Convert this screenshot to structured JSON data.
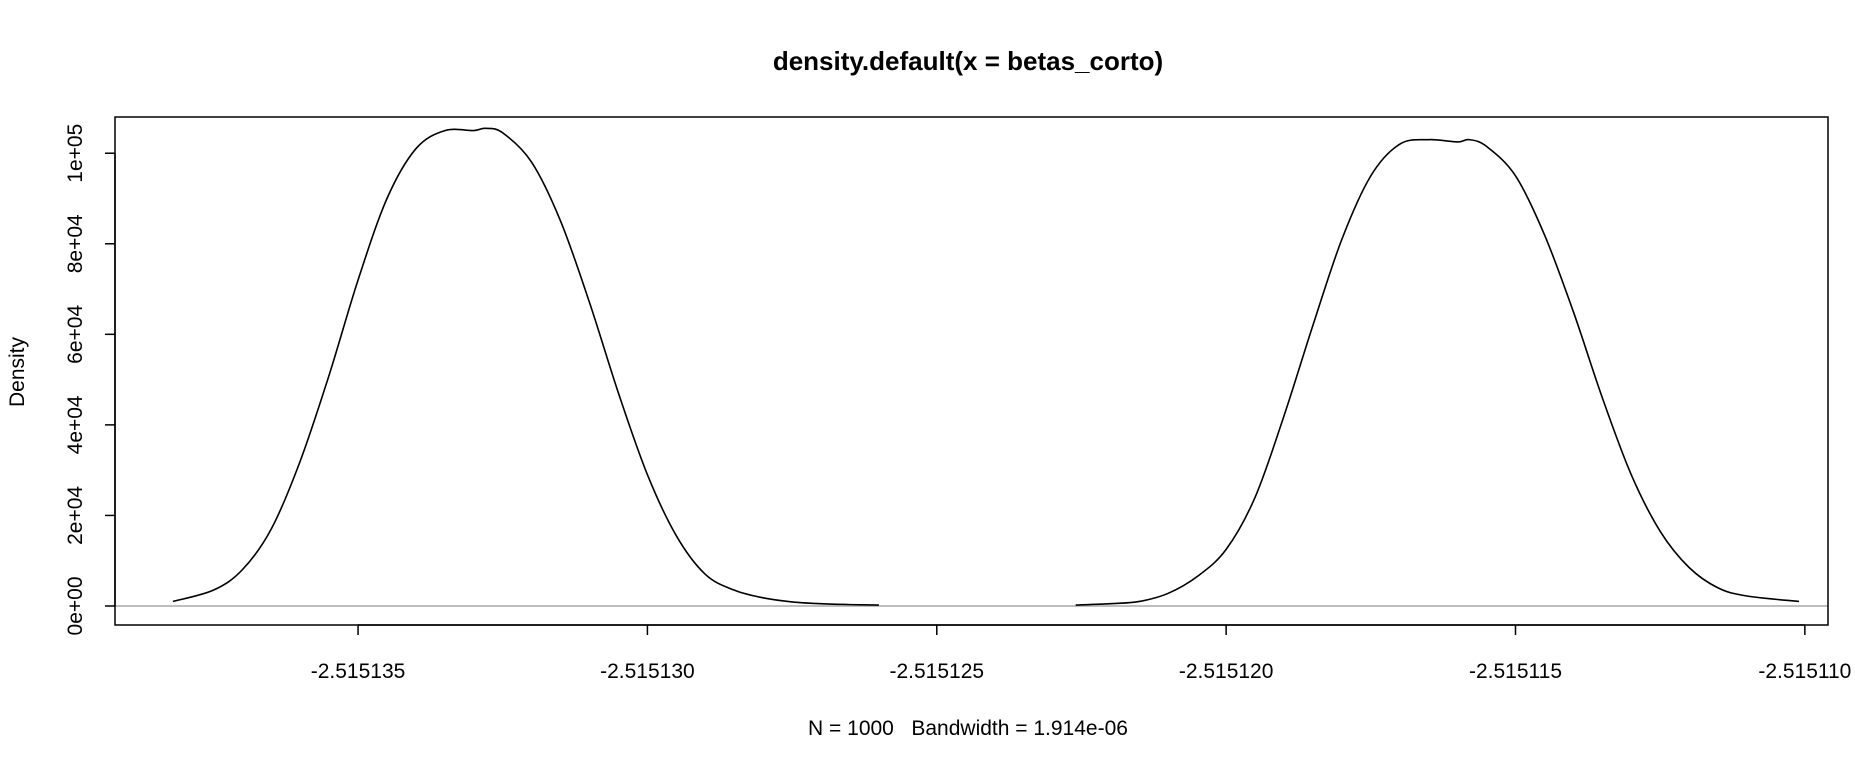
{
  "chart_data": {
    "type": "line",
    "title": "density.default(x = betas_corto)",
    "xlabel": "N = 1000   Bandwidth = 1.914e-06",
    "ylabel": "Density",
    "xlim": [
      -2.5151392,
      -2.5151096
    ],
    "ylim": [
      -4200,
      108000
    ],
    "x_ticks": [
      -2.515135,
      -2.51513,
      -2.515125,
      -2.51512,
      -2.515115,
      -2.51511
    ],
    "x_tick_labels": [
      "-2.515135",
      "-2.515130",
      "-2.515125",
      "-2.515120",
      "-2.515115",
      "-2.515110"
    ],
    "y_ticks": [
      0,
      20000,
      40000,
      60000,
      80000,
      100000
    ],
    "y_tick_labels": [
      "0e+00",
      "2e+04",
      "4e+04",
      "6e+04",
      "8e+04",
      "1e+05"
    ],
    "zero_line_color": "#bebebe",
    "series": [
      {
        "x": [
          -2.5151382,
          -2.5151375,
          -2.515137,
          -2.5151365,
          -2.515136,
          -2.5151355,
          -2.515135,
          -2.5151345,
          -2.515134,
          -2.5151335,
          -2.515133,
          -2.5151328,
          -2.5151325,
          -2.515132,
          -2.5151315,
          -2.515131,
          -2.5151305,
          -2.51513,
          -2.5151295,
          -2.515129,
          -2.5151285,
          -2.515128,
          -2.5151275,
          -2.515127,
          -2.5151265,
          -2.515126
        ],
        "y": [
          1000,
          3500,
          8000,
          17000,
          32000,
          51000,
          72000,
          90000,
          101000,
          105000,
          105000,
          105500,
          104500,
          98000,
          85000,
          67000,
          47000,
          29000,
          15500,
          7000,
          3500,
          1800,
          900,
          500,
          300,
          200
        ]
      },
      {
        "x": [
          -2.5151226,
          -2.515122,
          -2.5151215,
          -2.515121,
          -2.5151205,
          -2.51512,
          -2.5151195,
          -2.515119,
          -2.5151185,
          -2.515118,
          -2.5151175,
          -2.515117,
          -2.5151165,
          -2.515116,
          -2.5151158,
          -2.5151155,
          -2.515115,
          -2.5151145,
          -2.515114,
          -2.5151135,
          -2.515113,
          -2.5151125,
          -2.515112,
          -2.5151115,
          -2.515111,
          -2.5151101
        ],
        "y": [
          200,
          500,
          1000,
          2800,
          6500,
          12500,
          24000,
          42000,
          62000,
          81000,
          95000,
          102000,
          103000,
          102500,
          103000,
          101500,
          95000,
          82000,
          65000,
          46000,
          29000,
          16500,
          8500,
          4000,
          2200,
          1000
        ]
      }
    ]
  }
}
